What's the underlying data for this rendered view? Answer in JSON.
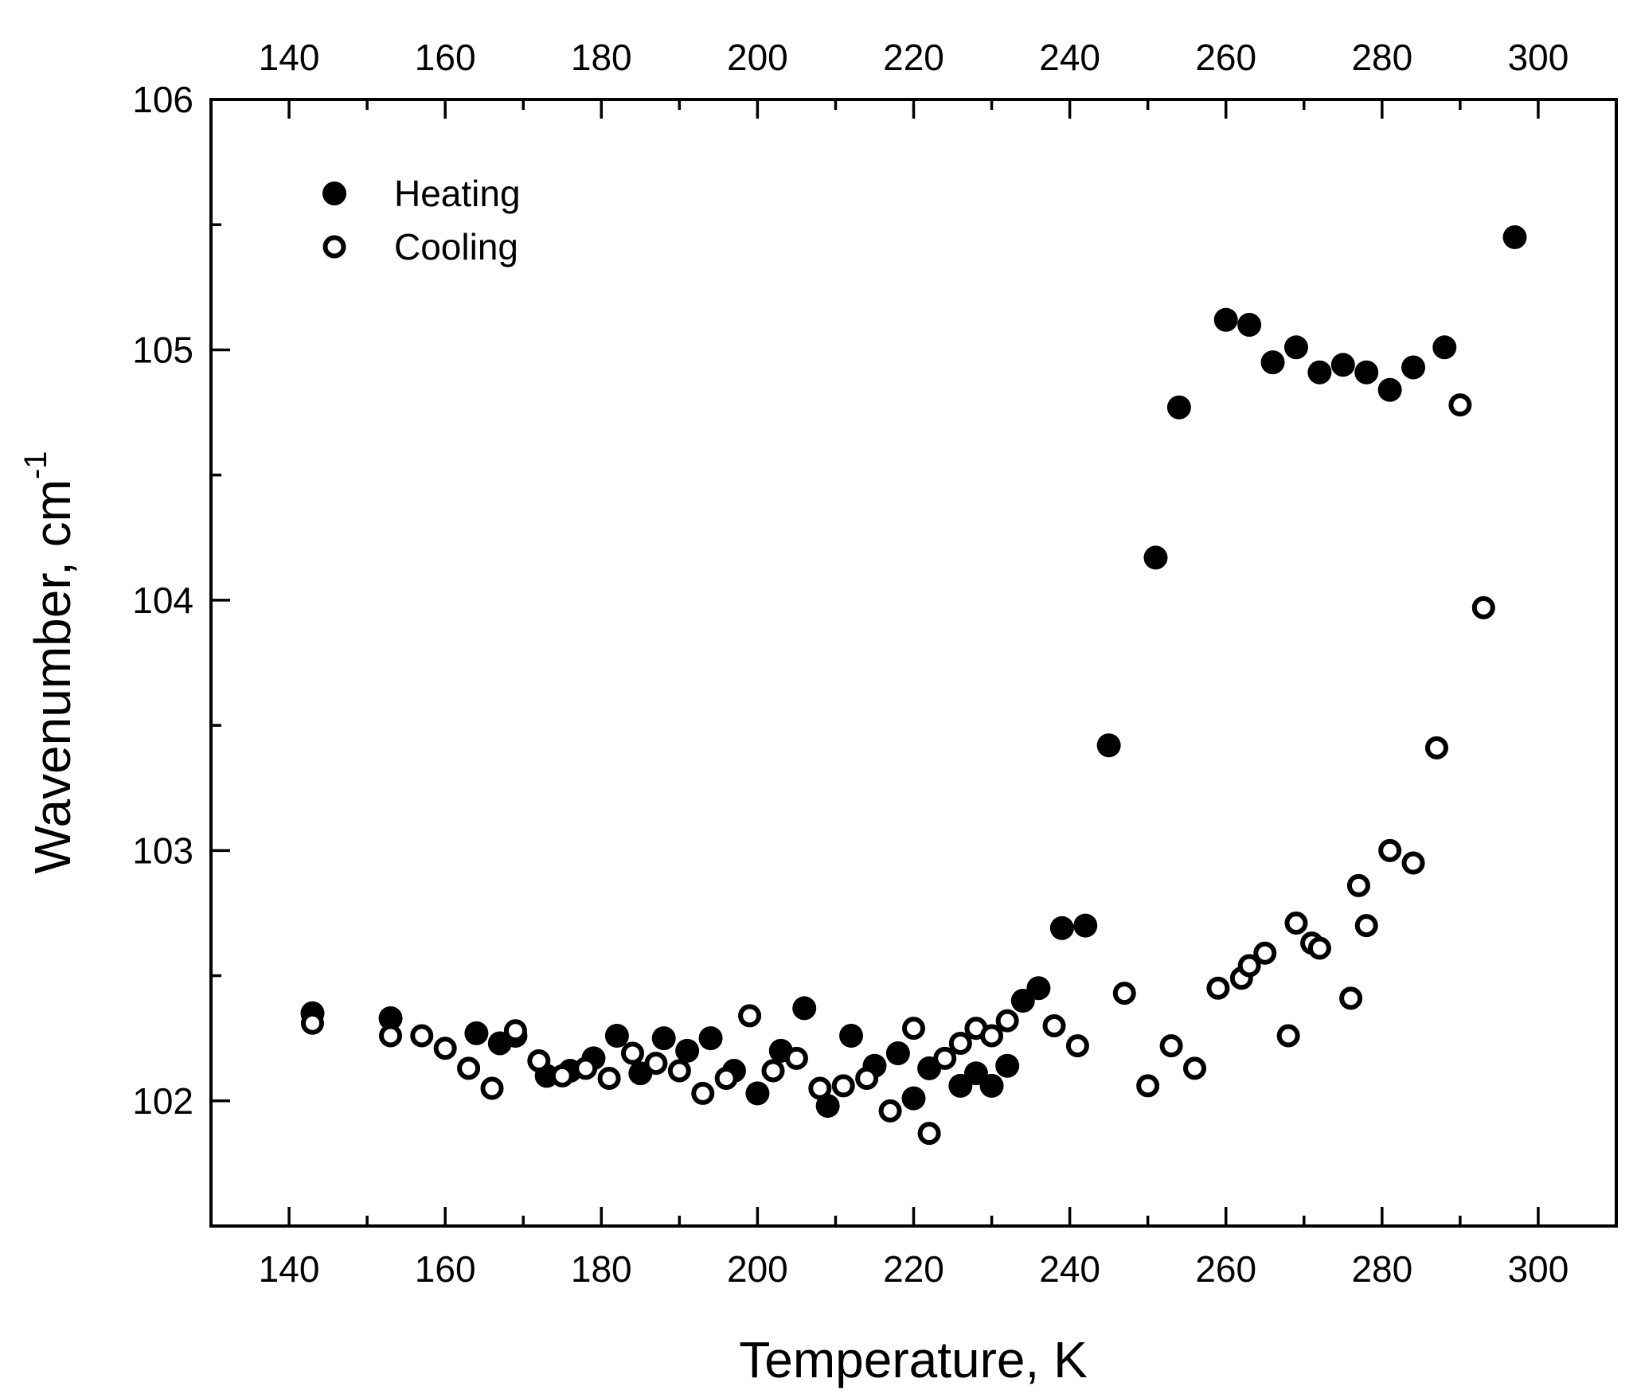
{
  "chart_data": {
    "type": "scatter",
    "title": "",
    "xlabel": "Temperature, K",
    "ylabel_main": "Wavenumber, cm",
    "ylabel_sup": "-1",
    "xlim": [
      130,
      310
    ],
    "ylim": [
      101.5,
      106
    ],
    "x_ticks": [
      140,
      160,
      180,
      200,
      220,
      240,
      260,
      280,
      300
    ],
    "y_ticks": [
      102,
      103,
      104,
      105,
      106
    ],
    "legend_position": "top-left",
    "series": [
      {
        "name": "Heating",
        "marker": "filled-circle",
        "points": [
          [
            143,
            102.35
          ],
          [
            153,
            102.33
          ],
          [
            164,
            102.27
          ],
          [
            167,
            102.23
          ],
          [
            169,
            102.26
          ],
          [
            173,
            102.1
          ],
          [
            176,
            102.12
          ],
          [
            179,
            102.17
          ],
          [
            182,
            102.26
          ],
          [
            185,
            102.11
          ],
          [
            188,
            102.25
          ],
          [
            191,
            102.2
          ],
          [
            194,
            102.25
          ],
          [
            197,
            102.12
          ],
          [
            200,
            102.03
          ],
          [
            203,
            102.2
          ],
          [
            206,
            102.37
          ],
          [
            209,
            101.98
          ],
          [
            212,
            102.26
          ],
          [
            215,
            102.14
          ],
          [
            218,
            102.19
          ],
          [
            220,
            102.01
          ],
          [
            222,
            102.13
          ],
          [
            226,
            102.06
          ],
          [
            228,
            102.11
          ],
          [
            230,
            102.06
          ],
          [
            232,
            102.14
          ],
          [
            234,
            102.4
          ],
          [
            236,
            102.45
          ],
          [
            239,
            102.69
          ],
          [
            242,
            102.7
          ],
          [
            245,
            103.42
          ],
          [
            251,
            104.17
          ],
          [
            254,
            104.77
          ],
          [
            260,
            105.12
          ],
          [
            263,
            105.1
          ],
          [
            266,
            104.95
          ],
          [
            269,
            105.01
          ],
          [
            272,
            104.91
          ],
          [
            275,
            104.94
          ],
          [
            278,
            104.91
          ],
          [
            281,
            104.84
          ],
          [
            284,
            104.93
          ],
          [
            288,
            105.01
          ],
          [
            297,
            105.45
          ]
        ]
      },
      {
        "name": "Cooling",
        "marker": "open-circle",
        "points": [
          [
            143,
            102.31
          ],
          [
            153,
            102.26
          ],
          [
            157,
            102.26
          ],
          [
            160,
            102.21
          ],
          [
            163,
            102.13
          ],
          [
            166,
            102.05
          ],
          [
            169,
            102.28
          ],
          [
            172,
            102.16
          ],
          [
            175,
            102.1
          ],
          [
            178,
            102.13
          ],
          [
            181,
            102.09
          ],
          [
            184,
            102.19
          ],
          [
            187,
            102.15
          ],
          [
            190,
            102.12
          ],
          [
            193,
            102.03
          ],
          [
            196,
            102.09
          ],
          [
            199,
            102.34
          ],
          [
            202,
            102.12
          ],
          [
            205,
            102.17
          ],
          [
            208,
            102.05
          ],
          [
            211,
            102.06
          ],
          [
            214,
            102.09
          ],
          [
            217,
            101.96
          ],
          [
            220,
            102.29
          ],
          [
            222,
            101.87
          ],
          [
            224,
            102.17
          ],
          [
            226,
            102.23
          ],
          [
            228,
            102.29
          ],
          [
            230,
            102.26
          ],
          [
            232,
            102.32
          ],
          [
            238,
            102.3
          ],
          [
            241,
            102.22
          ],
          [
            247,
            102.43
          ],
          [
            250,
            102.06
          ],
          [
            253,
            102.22
          ],
          [
            256,
            102.13
          ],
          [
            259,
            102.45
          ],
          [
            262,
            102.49
          ],
          [
            263,
            102.54
          ],
          [
            265,
            102.59
          ],
          [
            268,
            102.26
          ],
          [
            269,
            102.71
          ],
          [
            271,
            102.63
          ],
          [
            272,
            102.61
          ],
          [
            276,
            102.41
          ],
          [
            277,
            102.86
          ],
          [
            278,
            102.7
          ],
          [
            281,
            103.0
          ],
          [
            284,
            102.95
          ],
          [
            287,
            103.41
          ],
          [
            290,
            104.78
          ],
          [
            293,
            103.97
          ]
        ]
      }
    ]
  }
}
